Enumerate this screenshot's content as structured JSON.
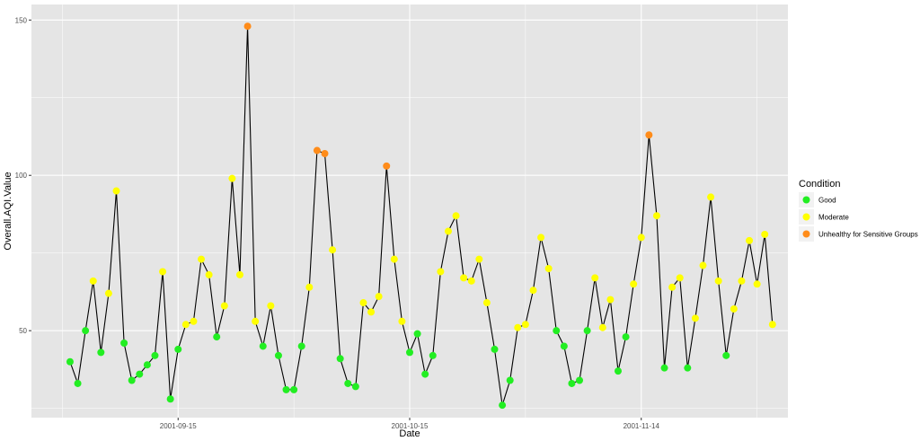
{
  "chart_data": {
    "type": "line",
    "xlabel": "Date",
    "ylabel": "Overall.AQI.Value",
    "x_ticks": [
      "2001-09-15",
      "2001-10-15",
      "2001-11-14"
    ],
    "y_ticks": [
      50,
      100,
      150
    ],
    "ylim": [
      22,
      155
    ],
    "xlim": [
      "2001-08-27",
      "2001-12-03"
    ],
    "grid": true,
    "legend": {
      "title": "Condition",
      "placement": "right",
      "entries": [
        {
          "label": "Good",
          "color": "#22ee22"
        },
        {
          "label": "Moderate",
          "color": "#ffff00"
        },
        {
          "label": "Unhealthy for Sensitive Groups",
          "color": "#ff8c1a"
        }
      ]
    },
    "colors": {
      "panel": "#e5e5e5",
      "grid": "#ffffff",
      "line": "#000000",
      "Good": "#22ee22",
      "Moderate": "#ffff00",
      "Unhealthy for Sensitive Groups": "#ff8c1a"
    },
    "points": [
      {
        "date": "2001-09-01",
        "aqi": 40,
        "cond": "Good"
      },
      {
        "date": "2001-09-02",
        "aqi": 33,
        "cond": "Good"
      },
      {
        "date": "2001-09-03",
        "aqi": 50,
        "cond": "Good"
      },
      {
        "date": "2001-09-04",
        "aqi": 66,
        "cond": "Moderate"
      },
      {
        "date": "2001-09-05",
        "aqi": 43,
        "cond": "Good"
      },
      {
        "date": "2001-09-06",
        "aqi": 62,
        "cond": "Moderate"
      },
      {
        "date": "2001-09-07",
        "aqi": 95,
        "cond": "Moderate"
      },
      {
        "date": "2001-09-08",
        "aqi": 46,
        "cond": "Good"
      },
      {
        "date": "2001-09-09",
        "aqi": 34,
        "cond": "Good"
      },
      {
        "date": "2001-09-10",
        "aqi": 36,
        "cond": "Good"
      },
      {
        "date": "2001-09-11",
        "aqi": 39,
        "cond": "Good"
      },
      {
        "date": "2001-09-12",
        "aqi": 42,
        "cond": "Good"
      },
      {
        "date": "2001-09-13",
        "aqi": 69,
        "cond": "Moderate"
      },
      {
        "date": "2001-09-14",
        "aqi": 28,
        "cond": "Good"
      },
      {
        "date": "2001-09-15",
        "aqi": 44,
        "cond": "Good"
      },
      {
        "date": "2001-09-16",
        "aqi": 52,
        "cond": "Moderate"
      },
      {
        "date": "2001-09-17",
        "aqi": 53,
        "cond": "Moderate"
      },
      {
        "date": "2001-09-18",
        "aqi": 73,
        "cond": "Moderate"
      },
      {
        "date": "2001-09-19",
        "aqi": 68,
        "cond": "Moderate"
      },
      {
        "date": "2001-09-20",
        "aqi": 48,
        "cond": "Good"
      },
      {
        "date": "2001-09-21",
        "aqi": 58,
        "cond": "Moderate"
      },
      {
        "date": "2001-09-22",
        "aqi": 99,
        "cond": "Moderate"
      },
      {
        "date": "2001-09-23",
        "aqi": 68,
        "cond": "Moderate"
      },
      {
        "date": "2001-09-24",
        "aqi": 148,
        "cond": "Unhealthy for Sensitive Groups"
      },
      {
        "date": "2001-09-25",
        "aqi": 53,
        "cond": "Moderate"
      },
      {
        "date": "2001-09-26",
        "aqi": 45,
        "cond": "Good"
      },
      {
        "date": "2001-09-27",
        "aqi": 58,
        "cond": "Moderate"
      },
      {
        "date": "2001-09-28",
        "aqi": 42,
        "cond": "Good"
      },
      {
        "date": "2001-09-29",
        "aqi": 31,
        "cond": "Good"
      },
      {
        "date": "2001-09-30",
        "aqi": 31,
        "cond": "Good"
      },
      {
        "date": "2001-10-01",
        "aqi": 45,
        "cond": "Good"
      },
      {
        "date": "2001-10-02",
        "aqi": 64,
        "cond": "Moderate"
      },
      {
        "date": "2001-10-03",
        "aqi": 108,
        "cond": "Unhealthy for Sensitive Groups"
      },
      {
        "date": "2001-10-04",
        "aqi": 107,
        "cond": "Unhealthy for Sensitive Groups"
      },
      {
        "date": "2001-10-05",
        "aqi": 76,
        "cond": "Moderate"
      },
      {
        "date": "2001-10-06",
        "aqi": 41,
        "cond": "Good"
      },
      {
        "date": "2001-10-07",
        "aqi": 33,
        "cond": "Good"
      },
      {
        "date": "2001-10-08",
        "aqi": 32,
        "cond": "Good"
      },
      {
        "date": "2001-10-09",
        "aqi": 59,
        "cond": "Moderate"
      },
      {
        "date": "2001-10-10",
        "aqi": 56,
        "cond": "Moderate"
      },
      {
        "date": "2001-10-11",
        "aqi": 61,
        "cond": "Moderate"
      },
      {
        "date": "2001-10-12",
        "aqi": 103,
        "cond": "Unhealthy for Sensitive Groups"
      },
      {
        "date": "2001-10-13",
        "aqi": 73,
        "cond": "Moderate"
      },
      {
        "date": "2001-10-14",
        "aqi": 53,
        "cond": "Moderate"
      },
      {
        "date": "2001-10-15",
        "aqi": 43,
        "cond": "Good"
      },
      {
        "date": "2001-10-16",
        "aqi": 49,
        "cond": "Good"
      },
      {
        "date": "2001-10-17",
        "aqi": 36,
        "cond": "Good"
      },
      {
        "date": "2001-10-18",
        "aqi": 42,
        "cond": "Good"
      },
      {
        "date": "2001-10-19",
        "aqi": 69,
        "cond": "Moderate"
      },
      {
        "date": "2001-10-20",
        "aqi": 82,
        "cond": "Moderate"
      },
      {
        "date": "2001-10-21",
        "aqi": 87,
        "cond": "Moderate"
      },
      {
        "date": "2001-10-22",
        "aqi": 67,
        "cond": "Moderate"
      },
      {
        "date": "2001-10-23",
        "aqi": 66,
        "cond": "Moderate"
      },
      {
        "date": "2001-10-24",
        "aqi": 73,
        "cond": "Moderate"
      },
      {
        "date": "2001-10-25",
        "aqi": 59,
        "cond": "Moderate"
      },
      {
        "date": "2001-10-26",
        "aqi": 44,
        "cond": "Good"
      },
      {
        "date": "2001-10-27",
        "aqi": 26,
        "cond": "Good"
      },
      {
        "date": "2001-10-28",
        "aqi": 34,
        "cond": "Good"
      },
      {
        "date": "2001-10-29",
        "aqi": 51,
        "cond": "Moderate"
      },
      {
        "date": "2001-10-30",
        "aqi": 52,
        "cond": "Moderate"
      },
      {
        "date": "2001-10-31",
        "aqi": 63,
        "cond": "Moderate"
      },
      {
        "date": "2001-11-01",
        "aqi": 80,
        "cond": "Moderate"
      },
      {
        "date": "2001-11-02",
        "aqi": 70,
        "cond": "Moderate"
      },
      {
        "date": "2001-11-03",
        "aqi": 50,
        "cond": "Good"
      },
      {
        "date": "2001-11-04",
        "aqi": 45,
        "cond": "Good"
      },
      {
        "date": "2001-11-05",
        "aqi": 33,
        "cond": "Good"
      },
      {
        "date": "2001-11-06",
        "aqi": 34,
        "cond": "Good"
      },
      {
        "date": "2001-11-07",
        "aqi": 50,
        "cond": "Good"
      },
      {
        "date": "2001-11-08",
        "aqi": 67,
        "cond": "Moderate"
      },
      {
        "date": "2001-11-09",
        "aqi": 51,
        "cond": "Moderate"
      },
      {
        "date": "2001-11-10",
        "aqi": 60,
        "cond": "Moderate"
      },
      {
        "date": "2001-11-11",
        "aqi": 37,
        "cond": "Good"
      },
      {
        "date": "2001-11-12",
        "aqi": 48,
        "cond": "Good"
      },
      {
        "date": "2001-11-13",
        "aqi": 65,
        "cond": "Moderate"
      },
      {
        "date": "2001-11-14",
        "aqi": 80,
        "cond": "Moderate"
      },
      {
        "date": "2001-11-15",
        "aqi": 113,
        "cond": "Unhealthy for Sensitive Groups"
      },
      {
        "date": "2001-11-16",
        "aqi": 87,
        "cond": "Moderate"
      },
      {
        "date": "2001-11-17",
        "aqi": 38,
        "cond": "Good"
      },
      {
        "date": "2001-11-18",
        "aqi": 64,
        "cond": "Moderate"
      },
      {
        "date": "2001-11-19",
        "aqi": 67,
        "cond": "Moderate"
      },
      {
        "date": "2001-11-20",
        "aqi": 38,
        "cond": "Good"
      },
      {
        "date": "2001-11-21",
        "aqi": 54,
        "cond": "Moderate"
      },
      {
        "date": "2001-11-22",
        "aqi": 71,
        "cond": "Moderate"
      },
      {
        "date": "2001-11-23",
        "aqi": 93,
        "cond": "Moderate"
      },
      {
        "date": "2001-11-24",
        "aqi": 66,
        "cond": "Moderate"
      },
      {
        "date": "2001-11-25",
        "aqi": 42,
        "cond": "Good"
      },
      {
        "date": "2001-11-26",
        "aqi": 57,
        "cond": "Moderate"
      },
      {
        "date": "2001-11-27",
        "aqi": 66,
        "cond": "Moderate"
      },
      {
        "date": "2001-11-28",
        "aqi": 79,
        "cond": "Moderate"
      },
      {
        "date": "2001-11-29",
        "aqi": 65,
        "cond": "Moderate"
      },
      {
        "date": "2001-11-30",
        "aqi": 81,
        "cond": "Moderate"
      },
      {
        "date": "2001-12-01",
        "aqi": 52,
        "cond": "Moderate"
      }
    ]
  }
}
